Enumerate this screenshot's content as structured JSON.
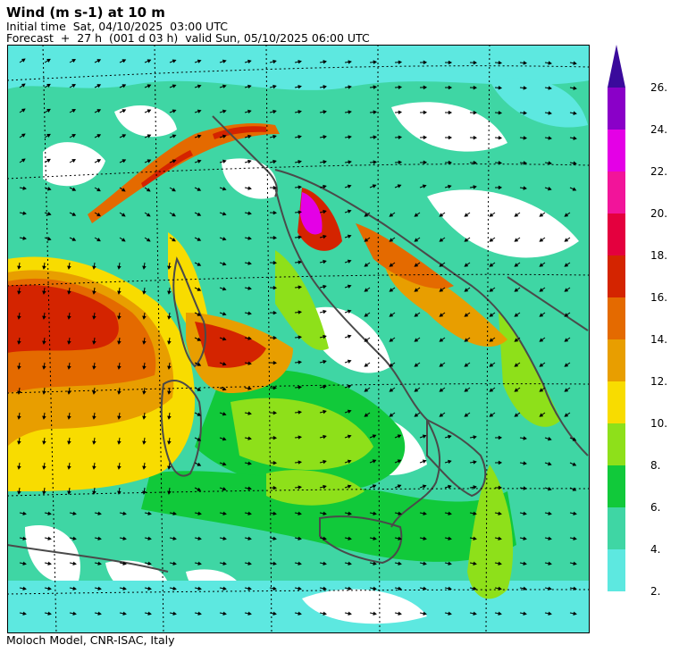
{
  "header": {
    "title": "Wind (m s-1) at 10 m",
    "initial_time": "Initial time  Sat, 04/10/2025  03:00 UTC",
    "forecast": "Forecast  +  27 h  (001 d 03 h)  valid Sun, 05/10/2025 06:00 UTC"
  },
  "footer": {
    "credit": "Moloch Model, CNR-ISAC, Italy"
  },
  "map": {
    "variable": "10 m wind speed with direction arrows",
    "region": "Italy and surrounding seas",
    "land_outline_color": "#4a4a4a",
    "graticule_color": "#000000"
  },
  "legend": {
    "labels": [
      "2.",
      "4.",
      "6.",
      "8.",
      "10.",
      "12.",
      "14.",
      "16.",
      "18.",
      "20.",
      "22.",
      "24.",
      "26."
    ],
    "colors": [
      "#ffffff",
      "#5de8e0",
      "#3fd6a4",
      "#11c93a",
      "#8ee01a",
      "#f8dc00",
      "#e89e00",
      "#e46a00",
      "#d42400",
      "#e4003e",
      "#f2149a",
      "#e400e6",
      "#8a00c8",
      "#3a0a9c"
    ]
  }
}
